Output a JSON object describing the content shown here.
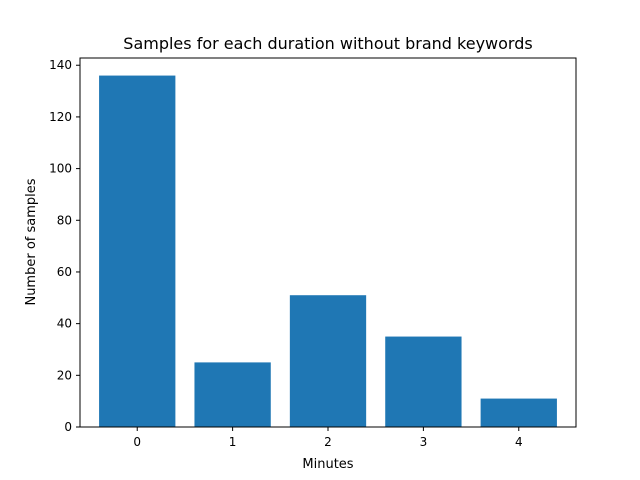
{
  "chart_data": {
    "type": "bar",
    "title": "Samples for each duration without brand keywords",
    "xlabel": "Minutes",
    "ylabel": "Number of samples",
    "categories": [
      "0",
      "1",
      "2",
      "3",
      "4"
    ],
    "values": [
      136,
      25,
      51,
      35,
      11
    ],
    "ylim": [
      0,
      142.8
    ],
    "yticks": [
      0,
      20,
      40,
      60,
      80,
      100,
      120,
      140
    ],
    "bar_color": "#1f77b4",
    "grid": false,
    "legend": false
  }
}
